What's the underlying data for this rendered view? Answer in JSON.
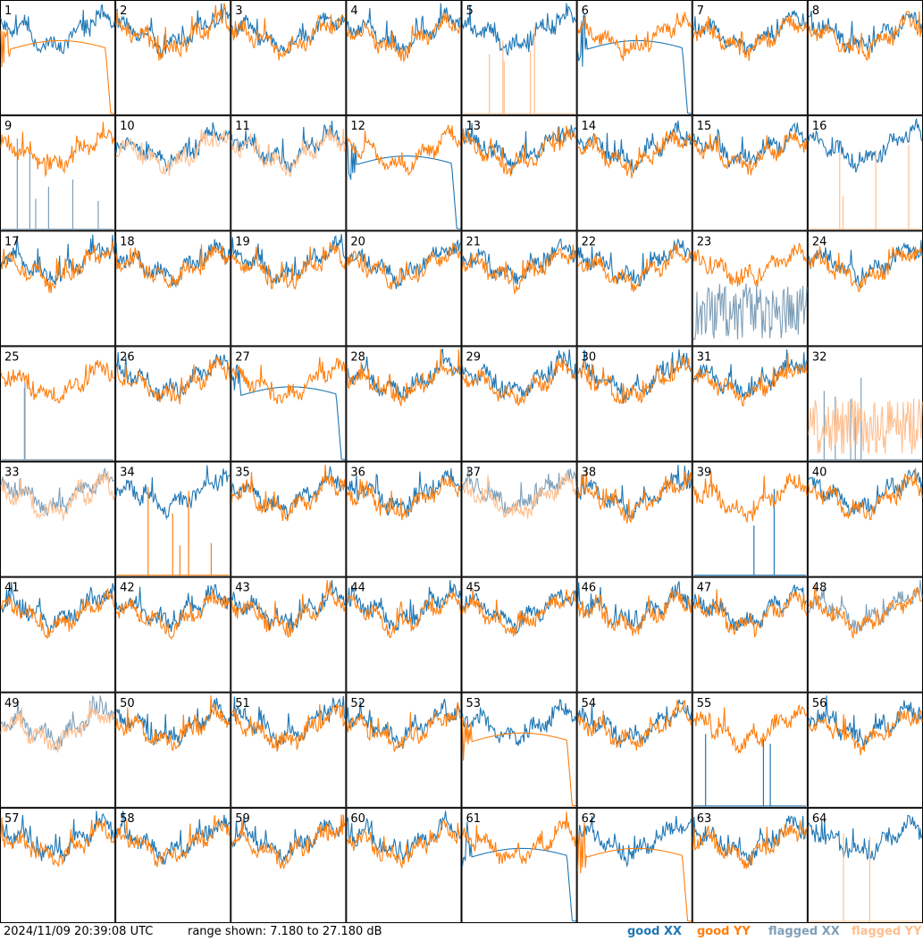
{
  "footer": {
    "timestamp": "2024/11/09 20:39:08 UTC",
    "range_text": "range shown: 7.180 to 27.180 dB"
  },
  "legend": [
    {
      "label": "good XX",
      "color": "#1f77b4"
    },
    {
      "label": "good YY",
      "color": "#ff7f0e"
    },
    {
      "label": "flagged XX",
      "color": "#7f9fb8"
    },
    {
      "label": "flagged YY",
      "color": "#ffbf8f"
    }
  ],
  "chart_data": {
    "type": "line",
    "grid_rows": 8,
    "grid_cols": 8,
    "ylim": [
      7.18,
      27.18
    ],
    "y_unit": "dB",
    "panels": [
      {
        "id": "1",
        "xx": "good",
        "yy": "good",
        "xx_shape": "normal",
        "yy_shape": "rolloff"
      },
      {
        "id": "2",
        "xx": "good",
        "yy": "good",
        "xx_shape": "normal",
        "yy_shape": "normal"
      },
      {
        "id": "3",
        "xx": "good",
        "yy": "good",
        "xx_shape": "normal",
        "yy_shape": "normal"
      },
      {
        "id": "4",
        "xx": "good",
        "yy": "good",
        "xx_shape": "normal",
        "yy_shape": "normal"
      },
      {
        "id": "5",
        "xx": "good",
        "yy": "flagged",
        "xx_shape": "normal",
        "yy_shape": "spikes"
      },
      {
        "id": "6",
        "xx": "good",
        "yy": "good",
        "xx_shape": "rolloff",
        "yy_shape": "normal"
      },
      {
        "id": "7",
        "xx": "good",
        "yy": "good",
        "xx_shape": "normal",
        "yy_shape": "normal"
      },
      {
        "id": "8",
        "xx": "good",
        "yy": "good",
        "xx_shape": "normal",
        "yy_shape": "normal"
      },
      {
        "id": "9",
        "xx": "flagged",
        "yy": "good",
        "xx_shape": "spikes",
        "yy_shape": "normal"
      },
      {
        "id": "10",
        "xx": "good",
        "yy": "flagged",
        "xx_shape": "normal",
        "yy_shape": "normal"
      },
      {
        "id": "11",
        "xx": "good",
        "yy": "flagged",
        "xx_shape": "normal",
        "yy_shape": "normal"
      },
      {
        "id": "12",
        "xx": "good",
        "yy": "good",
        "xx_shape": "rolloff",
        "yy_shape": "normal"
      },
      {
        "id": "13",
        "xx": "good",
        "yy": "good",
        "xx_shape": "normal",
        "yy_shape": "normal"
      },
      {
        "id": "14",
        "xx": "good",
        "yy": "good",
        "xx_shape": "normal",
        "yy_shape": "normal"
      },
      {
        "id": "15",
        "xx": "good",
        "yy": "good",
        "xx_shape": "normal",
        "yy_shape": "normal"
      },
      {
        "id": "16",
        "xx": "good",
        "yy": "flagged",
        "xx_shape": "normal",
        "yy_shape": "spikes"
      },
      {
        "id": "17",
        "xx": "good",
        "yy": "good",
        "xx_shape": "normal",
        "yy_shape": "normal"
      },
      {
        "id": "18",
        "xx": "good",
        "yy": "good",
        "xx_shape": "normal",
        "yy_shape": "normal"
      },
      {
        "id": "19",
        "xx": "good",
        "yy": "good",
        "xx_shape": "normal",
        "yy_shape": "normal"
      },
      {
        "id": "20",
        "xx": "good",
        "yy": "good",
        "xx_shape": "normal",
        "yy_shape": "normal"
      },
      {
        "id": "21",
        "xx": "good",
        "yy": "good",
        "xx_shape": "normal",
        "yy_shape": "normal"
      },
      {
        "id": "22",
        "xx": "good",
        "yy": "good",
        "xx_shape": "normal",
        "yy_shape": "normal"
      },
      {
        "id": "23",
        "xx": "flagged",
        "yy": "good",
        "xx_shape": "noisy",
        "yy_shape": "normal"
      },
      {
        "id": "24",
        "xx": "good",
        "yy": "good",
        "xx_shape": "normal",
        "yy_shape": "normal"
      },
      {
        "id": "25",
        "xx": "flagged",
        "yy": "good",
        "xx_shape": "spikes",
        "yy_shape": "normal"
      },
      {
        "id": "26",
        "xx": "good",
        "yy": "good",
        "xx_shape": "normal",
        "yy_shape": "normal"
      },
      {
        "id": "27",
        "xx": "good",
        "yy": "good",
        "xx_shape": "rolloff",
        "yy_shape": "normal"
      },
      {
        "id": "28",
        "xx": "good",
        "yy": "good",
        "xx_shape": "normal",
        "yy_shape": "normal"
      },
      {
        "id": "29",
        "xx": "good",
        "yy": "good",
        "xx_shape": "normal",
        "yy_shape": "normal"
      },
      {
        "id": "30",
        "xx": "good",
        "yy": "good",
        "xx_shape": "normal",
        "yy_shape": "normal"
      },
      {
        "id": "31",
        "xx": "good",
        "yy": "good",
        "xx_shape": "normal",
        "yy_shape": "normal"
      },
      {
        "id": "32",
        "xx": "flagged",
        "yy": "flagged",
        "xx_shape": "spikes",
        "yy_shape": "noisy"
      },
      {
        "id": "33",
        "xx": "flagged",
        "yy": "flagged",
        "xx_shape": "normal",
        "yy_shape": "normal"
      },
      {
        "id": "34",
        "xx": "good",
        "yy": "good",
        "xx_shape": "normal",
        "yy_shape": "spikes"
      },
      {
        "id": "35",
        "xx": "good",
        "yy": "good",
        "xx_shape": "normal",
        "yy_shape": "normal"
      },
      {
        "id": "36",
        "xx": "good",
        "yy": "good",
        "xx_shape": "normal",
        "yy_shape": "normal"
      },
      {
        "id": "37",
        "xx": "flagged",
        "yy": "flagged",
        "xx_shape": "normal",
        "yy_shape": "normal"
      },
      {
        "id": "38",
        "xx": "good",
        "yy": "good",
        "xx_shape": "normal",
        "yy_shape": "normal"
      },
      {
        "id": "39",
        "xx": "good",
        "yy": "good",
        "xx_shape": "spikes",
        "yy_shape": "normal"
      },
      {
        "id": "40",
        "xx": "good",
        "yy": "good",
        "xx_shape": "normal",
        "yy_shape": "normal"
      },
      {
        "id": "41",
        "xx": "good",
        "yy": "good",
        "xx_shape": "normal",
        "yy_shape": "normal"
      },
      {
        "id": "42",
        "xx": "good",
        "yy": "good",
        "xx_shape": "normal",
        "yy_shape": "normal"
      },
      {
        "id": "43",
        "xx": "good",
        "yy": "good",
        "xx_shape": "normal",
        "yy_shape": "normal"
      },
      {
        "id": "44",
        "xx": "good",
        "yy": "good",
        "xx_shape": "normal",
        "yy_shape": "normal"
      },
      {
        "id": "45",
        "xx": "good",
        "yy": "good",
        "xx_shape": "normal",
        "yy_shape": "normal"
      },
      {
        "id": "46",
        "xx": "good",
        "yy": "good",
        "xx_shape": "normal",
        "yy_shape": "normal"
      },
      {
        "id": "47",
        "xx": "good",
        "yy": "good",
        "xx_shape": "normal",
        "yy_shape": "normal"
      },
      {
        "id": "48",
        "xx": "flagged",
        "yy": "good",
        "xx_shape": "normal",
        "yy_shape": "normal"
      },
      {
        "id": "49",
        "xx": "flagged",
        "yy": "flagged",
        "xx_shape": "normal",
        "yy_shape": "normal"
      },
      {
        "id": "50",
        "xx": "good",
        "yy": "good",
        "xx_shape": "normal",
        "yy_shape": "normal"
      },
      {
        "id": "51",
        "xx": "good",
        "yy": "good",
        "xx_shape": "normal",
        "yy_shape": "normal"
      },
      {
        "id": "52",
        "xx": "good",
        "yy": "good",
        "xx_shape": "normal",
        "yy_shape": "normal"
      },
      {
        "id": "53",
        "xx": "good",
        "yy": "good",
        "xx_shape": "normal",
        "yy_shape": "rolloff"
      },
      {
        "id": "54",
        "xx": "good",
        "yy": "good",
        "xx_shape": "normal",
        "yy_shape": "normal"
      },
      {
        "id": "55",
        "xx": "good",
        "yy": "good",
        "xx_shape": "spikes",
        "yy_shape": "normal"
      },
      {
        "id": "56",
        "xx": "good",
        "yy": "good",
        "xx_shape": "normal",
        "yy_shape": "normal"
      },
      {
        "id": "57",
        "xx": "good",
        "yy": "good",
        "xx_shape": "normal",
        "yy_shape": "normal"
      },
      {
        "id": "58",
        "xx": "good",
        "yy": "good",
        "xx_shape": "normal",
        "yy_shape": "normal"
      },
      {
        "id": "59",
        "xx": "good",
        "yy": "good",
        "xx_shape": "normal",
        "yy_shape": "normal"
      },
      {
        "id": "60",
        "xx": "good",
        "yy": "good",
        "xx_shape": "normal",
        "yy_shape": "normal"
      },
      {
        "id": "61",
        "xx": "good",
        "yy": "good",
        "xx_shape": "rolloff",
        "yy_shape": "normal"
      },
      {
        "id": "62",
        "xx": "good",
        "yy": "good",
        "xx_shape": "normal",
        "yy_shape": "rolloff"
      },
      {
        "id": "63",
        "xx": "good",
        "yy": "good",
        "xx_shape": "normal",
        "yy_shape": "normal"
      },
      {
        "id": "64",
        "xx": "good",
        "yy": "flagged",
        "xx_shape": "normal",
        "yy_shape": "spikes"
      }
    ]
  }
}
